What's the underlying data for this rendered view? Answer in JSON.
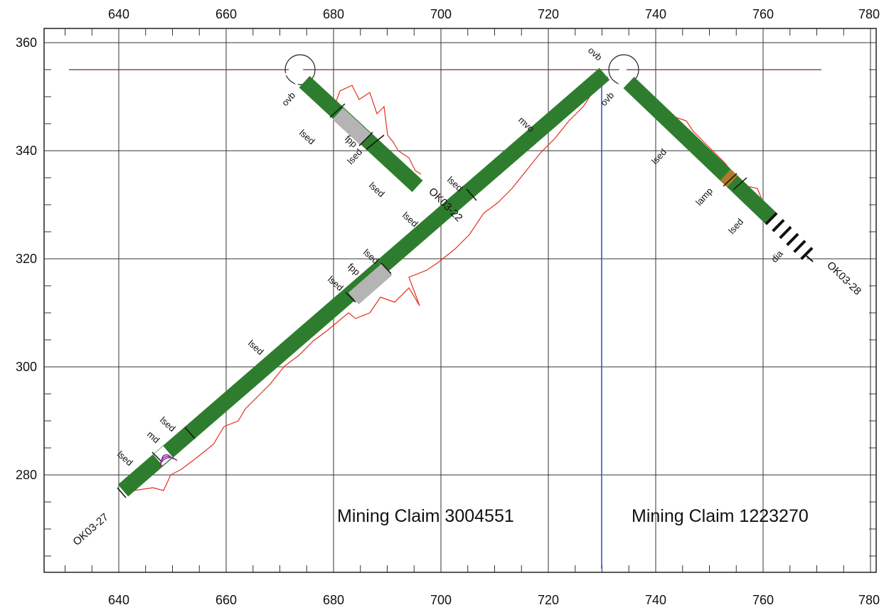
{
  "axes": {
    "x_ticks": [
      "640",
      "660",
      "680",
      "700",
      "720",
      "740",
      "760",
      "780"
    ],
    "y_ticks": [
      "360",
      "340",
      "320",
      "300",
      "280"
    ]
  },
  "claims": [
    {
      "label": "Mining Claim 3004551"
    },
    {
      "label": "Mining Claim 1223270"
    }
  ],
  "drillholes": [
    {
      "id": "OK03-27",
      "label": "OK03-27"
    },
    {
      "id": "OK03-28",
      "label": "OK03-28"
    },
    {
      "id": "OK03-22",
      "label": "OK03-22"
    }
  ],
  "lithology_labels": [
    {
      "text": "ovb"
    },
    {
      "text": "lsed"
    },
    {
      "text": "fpp"
    },
    {
      "text": "lsed"
    },
    {
      "text": "lsed"
    },
    {
      "text": "mvo"
    },
    {
      "text": "lsed"
    },
    {
      "text": "lsed"
    },
    {
      "text": "lsed"
    },
    {
      "text": "fpp"
    },
    {
      "text": "lsed"
    },
    {
      "text": "lsed"
    },
    {
      "text": "lsed"
    },
    {
      "text": "md"
    },
    {
      "text": "lsed"
    },
    {
      "text": "ovb"
    },
    {
      "text": "ovb"
    },
    {
      "text": "lsed"
    },
    {
      "text": "lamp"
    },
    {
      "text": "lsed"
    },
    {
      "text": "dia"
    }
  ],
  "colors": {
    "core_green": "#2e7d2e",
    "fpp_grey": "#b4b4b4",
    "assay_red": "#e03020",
    "claim_line_blue": "#2050d0",
    "surface_line": "#6a2a4a",
    "lamp_orange": "#b07a2a"
  }
}
